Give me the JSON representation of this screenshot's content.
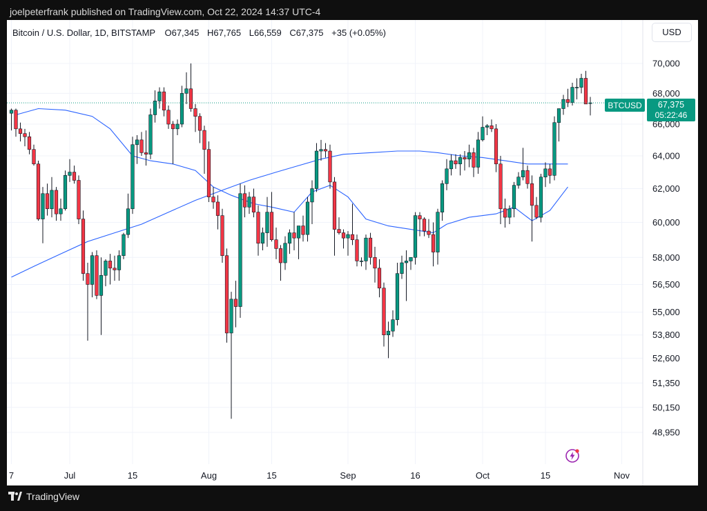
{
  "header": {
    "published": "joelpeterfrank published on TradingView.com, Oct 22, 2024 14:37 UTC-4"
  },
  "legend": {
    "symbol": "Bitcoin / U.S. Dollar, 1D, BITSTAMP",
    "open": "O67,345",
    "high": "H67,765",
    "low": "L66,559",
    "close": "C67,375",
    "change": "+35 (+0.05%)"
  },
  "currency": "USD",
  "price_tag": {
    "symbol": "BTCUSD",
    "price": "67,375",
    "countdown": "05:22:46"
  },
  "footer": {
    "brand": "TradingView"
  },
  "colors": {
    "up": "#089981",
    "down": "#f23645",
    "ma": "#2962ff",
    "tag": "#089981"
  },
  "chart_data": {
    "type": "candlestick",
    "title": "Bitcoin / U.S. Dollar, 1D, BITSTAMP",
    "y_axis": {
      "ticks": [
        {
          "value": 70000,
          "label": "70,000"
        },
        {
          "value": 68000,
          "label": "68,000"
        },
        {
          "value": 66000,
          "label": "66,000"
        },
        {
          "value": 64000,
          "label": "64,000"
        },
        {
          "value": 62000,
          "label": "62,000"
        },
        {
          "value": 60000,
          "label": "60,000"
        },
        {
          "value": 58000,
          "label": "58,000"
        },
        {
          "value": 56500,
          "label": "56,500"
        },
        {
          "value": 55000,
          "label": "55,000"
        },
        {
          "value": 53800,
          "label": "53,800"
        },
        {
          "value": 52600,
          "label": "52,600"
        },
        {
          "value": 51350,
          "label": "51,350"
        },
        {
          "value": 50150,
          "label": "50,150"
        },
        {
          "value": 48950,
          "label": "48,950"
        }
      ],
      "scale": "log"
    },
    "x_axis": {
      "ticks": [
        {
          "index": 0,
          "label": "7"
        },
        {
          "index": 13,
          "label": "Jul"
        },
        {
          "index": 27,
          "label": "15"
        },
        {
          "index": 44,
          "label": "Aug"
        },
        {
          "index": 58,
          "label": "15"
        },
        {
          "index": 75,
          "label": "Sep"
        },
        {
          "index": 90,
          "label": "16"
        },
        {
          "index": 105,
          "label": "Oct"
        },
        {
          "index": 119,
          "label": "15"
        },
        {
          "index": 136,
          "label": "Nov"
        }
      ]
    },
    "last_price": 67375,
    "candles": [
      {
        "o": 66700,
        "h": 67000,
        "l": 65600,
        "c": 66900
      },
      {
        "o": 66900,
        "h": 67000,
        "l": 65200,
        "c": 65700
      },
      {
        "o": 65700,
        "h": 66100,
        "l": 64900,
        "c": 65400
      },
      {
        "o": 65400,
        "h": 65700,
        "l": 64600,
        "c": 65200
      },
      {
        "o": 65200,
        "h": 65500,
        "l": 64100,
        "c": 64400
      },
      {
        "o": 64400,
        "h": 64700,
        "l": 63400,
        "c": 63500
      },
      {
        "o": 63500,
        "h": 63700,
        "l": 60100,
        "c": 60200
      },
      {
        "o": 60200,
        "h": 62100,
        "l": 58800,
        "c": 61700
      },
      {
        "o": 61700,
        "h": 62300,
        "l": 60400,
        "c": 60800
      },
      {
        "o": 60800,
        "h": 62700,
        "l": 60300,
        "c": 61900
      },
      {
        "o": 61900,
        "h": 62100,
        "l": 60100,
        "c": 60500
      },
      {
        "o": 60500,
        "h": 61400,
        "l": 60100,
        "c": 60800
      },
      {
        "o": 60800,
        "h": 63100,
        "l": 60700,
        "c": 62800
      },
      {
        "o": 62800,
        "h": 63800,
        "l": 62400,
        "c": 63000
      },
      {
        "o": 63000,
        "h": 63400,
        "l": 62300,
        "c": 62500
      },
      {
        "o": 62500,
        "h": 62800,
        "l": 59900,
        "c": 60200
      },
      {
        "o": 60200,
        "h": 60700,
        "l": 56700,
        "c": 57100
      },
      {
        "o": 57100,
        "h": 57700,
        "l": 53500,
        "c": 56500
      },
      {
        "o": 56500,
        "h": 58300,
        "l": 55800,
        "c": 58100
      },
      {
        "o": 58100,
        "h": 58400,
        "l": 55700,
        "c": 55900
      },
      {
        "o": 55900,
        "h": 58000,
        "l": 53800,
        "c": 57000
      },
      {
        "o": 57000,
        "h": 57900,
        "l": 56400,
        "c": 57800
      },
      {
        "o": 57800,
        "h": 58200,
        "l": 56500,
        "c": 57400
      },
      {
        "o": 57400,
        "h": 58100,
        "l": 56700,
        "c": 57300
      },
      {
        "o": 57300,
        "h": 58400,
        "l": 56700,
        "c": 58100
      },
      {
        "o": 58100,
        "h": 59400,
        "l": 57900,
        "c": 59300
      },
      {
        "o": 59300,
        "h": 61700,
        "l": 59100,
        "c": 60800
      },
      {
        "o": 60800,
        "h": 65200,
        "l": 60500,
        "c": 64700
      },
      {
        "o": 64700,
        "h": 65300,
        "l": 63500,
        "c": 65000
      },
      {
        "o": 65000,
        "h": 65500,
        "l": 64000,
        "c": 64200
      },
      {
        "o": 64200,
        "h": 65600,
        "l": 63400,
        "c": 64100
      },
      {
        "o": 64100,
        "h": 67000,
        "l": 63800,
        "c": 66600
      },
      {
        "o": 66600,
        "h": 68200,
        "l": 66100,
        "c": 67500
      },
      {
        "o": 67500,
        "h": 68400,
        "l": 67000,
        "c": 68100
      },
      {
        "o": 68100,
        "h": 68400,
        "l": 66500,
        "c": 66900
      },
      {
        "o": 66900,
        "h": 67200,
        "l": 65700,
        "c": 66000
      },
      {
        "o": 66000,
        "h": 66200,
        "l": 63500,
        "c": 65700
      },
      {
        "o": 65700,
        "h": 66300,
        "l": 65300,
        "c": 66000
      },
      {
        "o": 66000,
        "h": 68500,
        "l": 65800,
        "c": 68000
      },
      {
        "o": 68000,
        "h": 69400,
        "l": 67300,
        "c": 68300
      },
      {
        "o": 68300,
        "h": 70000,
        "l": 66800,
        "c": 67000
      },
      {
        "o": 67000,
        "h": 67300,
        "l": 65500,
        "c": 66500
      },
      {
        "o": 66500,
        "h": 66700,
        "l": 64800,
        "c": 65600
      },
      {
        "o": 65600,
        "h": 65900,
        "l": 62900,
        "c": 64400
      },
      {
        "o": 64400,
        "h": 64900,
        "l": 61200,
        "c": 61500
      },
      {
        "o": 61500,
        "h": 62100,
        "l": 60800,
        "c": 61200
      },
      {
        "o": 61200,
        "h": 61600,
        "l": 59600,
        "c": 60400
      },
      {
        "o": 60400,
        "h": 60800,
        "l": 57700,
        "c": 58100
      },
      {
        "o": 58100,
        "h": 58500,
        "l": 53400,
        "c": 53900
      },
      {
        "o": 53900,
        "h": 56100,
        "l": 49600,
        "c": 55700
      },
      {
        "o": 55700,
        "h": 56700,
        "l": 54200,
        "c": 55300
      },
      {
        "o": 55300,
        "h": 62300,
        "l": 54700,
        "c": 61700
      },
      {
        "o": 61700,
        "h": 62200,
        "l": 60300,
        "c": 60900
      },
      {
        "o": 60900,
        "h": 61800,
        "l": 60500,
        "c": 61500
      },
      {
        "o": 61500,
        "h": 62000,
        "l": 60300,
        "c": 60600
      },
      {
        "o": 60600,
        "h": 61000,
        "l": 58100,
        "c": 58800
      },
      {
        "o": 58800,
        "h": 59700,
        "l": 58400,
        "c": 59400
      },
      {
        "o": 59400,
        "h": 61500,
        "l": 58600,
        "c": 60600
      },
      {
        "o": 60600,
        "h": 61800,
        "l": 58900,
        "c": 59000
      },
      {
        "o": 59000,
        "h": 59700,
        "l": 57900,
        "c": 58500
      },
      {
        "o": 58500,
        "h": 58700,
        "l": 56700,
        "c": 57700
      },
      {
        "o": 57700,
        "h": 59200,
        "l": 57300,
        "c": 58800
      },
      {
        "o": 58800,
        "h": 59600,
        "l": 58200,
        "c": 59400
      },
      {
        "o": 59400,
        "h": 60600,
        "l": 58400,
        "c": 59100
      },
      {
        "o": 59100,
        "h": 59800,
        "l": 57900,
        "c": 59800
      },
      {
        "o": 59800,
        "h": 60400,
        "l": 58900,
        "c": 59300
      },
      {
        "o": 59300,
        "h": 61500,
        "l": 58900,
        "c": 61200
      },
      {
        "o": 61200,
        "h": 62500,
        "l": 59900,
        "c": 62000
      },
      {
        "o": 62000,
        "h": 64800,
        "l": 61800,
        "c": 64300
      },
      {
        "o": 64300,
        "h": 65000,
        "l": 63700,
        "c": 64400
      },
      {
        "o": 64400,
        "h": 64800,
        "l": 63900,
        "c": 64300
      },
      {
        "o": 64300,
        "h": 64700,
        "l": 62000,
        "c": 62400
      },
      {
        "o": 62400,
        "h": 62700,
        "l": 58100,
        "c": 59600
      },
      {
        "o": 59600,
        "h": 60300,
        "l": 59300,
        "c": 59400
      },
      {
        "o": 59400,
        "h": 59600,
        "l": 58500,
        "c": 59100
      },
      {
        "o": 59100,
        "h": 59500,
        "l": 58100,
        "c": 59300
      },
      {
        "o": 59300,
        "h": 61100,
        "l": 58700,
        "c": 59000
      },
      {
        "o": 59000,
        "h": 59300,
        "l": 57500,
        "c": 57800
      },
      {
        "o": 57800,
        "h": 58000,
        "l": 57500,
        "c": 57800
      },
      {
        "o": 57800,
        "h": 59300,
        "l": 57300,
        "c": 59100
      },
      {
        "o": 59100,
        "h": 59400,
        "l": 57600,
        "c": 58000
      },
      {
        "o": 58000,
        "h": 58600,
        "l": 56600,
        "c": 57400
      },
      {
        "o": 57400,
        "h": 57900,
        "l": 55800,
        "c": 56300
      },
      {
        "o": 56300,
        "h": 56600,
        "l": 53200,
        "c": 53800
      },
      {
        "o": 53800,
        "h": 54500,
        "l": 52600,
        "c": 54000
      },
      {
        "o": 54000,
        "h": 55100,
        "l": 53700,
        "c": 54600
      },
      {
        "o": 54600,
        "h": 57700,
        "l": 54300,
        "c": 57100
      },
      {
        "o": 57100,
        "h": 58100,
        "l": 56800,
        "c": 57700
      },
      {
        "o": 57700,
        "h": 58400,
        "l": 55600,
        "c": 57800
      },
      {
        "o": 57800,
        "h": 58000,
        "l": 57300,
        "c": 58000
      },
      {
        "o": 58000,
        "h": 60600,
        "l": 57600,
        "c": 60400
      },
      {
        "o": 60400,
        "h": 60600,
        "l": 59200,
        "c": 60200
      },
      {
        "o": 60200,
        "h": 60300,
        "l": 59200,
        "c": 59500
      },
      {
        "o": 59500,
        "h": 60200,
        "l": 59100,
        "c": 59300
      },
      {
        "o": 59300,
        "h": 60000,
        "l": 57500,
        "c": 58300
      },
      {
        "o": 58300,
        "h": 60800,
        "l": 57600,
        "c": 60600
      },
      {
        "o": 60600,
        "h": 62500,
        "l": 60100,
        "c": 62300
      },
      {
        "o": 62300,
        "h": 63800,
        "l": 61900,
        "c": 63200
      },
      {
        "o": 63200,
        "h": 64100,
        "l": 62800,
        "c": 63700
      },
      {
        "o": 63700,
        "h": 64100,
        "l": 63200,
        "c": 63500
      },
      {
        "o": 63500,
        "h": 64100,
        "l": 62800,
        "c": 63900
      },
      {
        "o": 63900,
        "h": 64300,
        "l": 63100,
        "c": 63800
      },
      {
        "o": 63800,
        "h": 64700,
        "l": 63300,
        "c": 64200
      },
      {
        "o": 64200,
        "h": 64500,
        "l": 62700,
        "c": 63300
      },
      {
        "o": 63300,
        "h": 65500,
        "l": 62900,
        "c": 65000
      },
      {
        "o": 65000,
        "h": 66500,
        "l": 64900,
        "c": 65800
      },
      {
        "o": 65800,
        "h": 66000,
        "l": 65300,
        "c": 65900
      },
      {
        "o": 65900,
        "h": 66300,
        "l": 65500,
        "c": 65700
      },
      {
        "o": 65700,
        "h": 66000,
        "l": 63000,
        "c": 63500
      },
      {
        "o": 63500,
        "h": 64000,
        "l": 59900,
        "c": 60800
      },
      {
        "o": 60800,
        "h": 61400,
        "l": 59700,
        "c": 60300
      },
      {
        "o": 60300,
        "h": 61000,
        "l": 59900,
        "c": 60800
      },
      {
        "o": 60800,
        "h": 62400,
        "l": 60300,
        "c": 62200
      },
      {
        "o": 62200,
        "h": 63000,
        "l": 62000,
        "c": 62700
      },
      {
        "o": 62700,
        "h": 64500,
        "l": 62500,
        "c": 63100
      },
      {
        "o": 63100,
        "h": 63400,
        "l": 62000,
        "c": 62300
      },
      {
        "o": 62300,
        "h": 62800,
        "l": 58900,
        "c": 61000
      },
      {
        "o": 61000,
        "h": 61500,
        "l": 60200,
        "c": 60300
      },
      {
        "o": 60300,
        "h": 62900,
        "l": 60000,
        "c": 62700
      },
      {
        "o": 62700,
        "h": 63600,
        "l": 62100,
        "c": 63200
      },
      {
        "o": 63200,
        "h": 63500,
        "l": 62300,
        "c": 62800
      },
      {
        "o": 62800,
        "h": 66500,
        "l": 62500,
        "c": 66100
      },
      {
        "o": 66100,
        "h": 67000,
        "l": 64900,
        "c": 67000
      },
      {
        "o": 67000,
        "h": 67900,
        "l": 66600,
        "c": 67600
      },
      {
        "o": 67600,
        "h": 68300,
        "l": 67100,
        "c": 67400
      },
      {
        "o": 67400,
        "h": 68700,
        "l": 67200,
        "c": 68400
      },
      {
        "o": 68400,
        "h": 69000,
        "l": 67600,
        "c": 68400
      },
      {
        "o": 68400,
        "h": 69300,
        "l": 68000,
        "c": 69000
      },
      {
        "o": 69000,
        "h": 69500,
        "l": 67500,
        "c": 67300
      },
      {
        "o": 67345,
        "h": 67765,
        "l": 66559,
        "c": 67375
      }
    ],
    "ma_short": {
      "name": "Short moving average",
      "points": [
        [
          1,
          66600
        ],
        [
          6,
          67000
        ],
        [
          12,
          66900
        ],
        [
          18,
          66500
        ],
        [
          22,
          65700
        ],
        [
          27,
          64000
        ],
        [
          31,
          63700
        ],
        [
          36,
          63500
        ],
        [
          41,
          63100
        ],
        [
          45,
          62100
        ],
        [
          49,
          61600
        ],
        [
          54,
          61100
        ],
        [
          58,
          60900
        ],
        [
          63,
          60600
        ],
        [
          67,
          61800
        ],
        [
          71,
          62200
        ],
        [
          75,
          61500
        ],
        [
          79,
          60200
        ],
        [
          84,
          59800
        ],
        [
          89,
          59600
        ],
        [
          94,
          59400
        ],
        [
          97,
          59900
        ],
        [
          102,
          60300
        ],
        [
          108,
          60500
        ],
        [
          112,
          60900
        ],
        [
          116,
          60100
        ],
        [
          120,
          60700
        ],
        [
          124,
          62100
        ]
      ]
    },
    "ma_long": {
      "name": "Long moving average",
      "points": [
        [
          0,
          56900
        ],
        [
          5,
          57500
        ],
        [
          11,
          58200
        ],
        [
          17,
          58900
        ],
        [
          23,
          59400
        ],
        [
          29,
          59900
        ],
        [
          35,
          60600
        ],
        [
          41,
          61300
        ],
        [
          47,
          61900
        ],
        [
          53,
          62500
        ],
        [
          59,
          63000
        ],
        [
          64,
          63400
        ],
        [
          69,
          63800
        ],
        [
          74,
          64100
        ],
        [
          80,
          64200
        ],
        [
          86,
          64300
        ],
        [
          91,
          64300
        ],
        [
          95,
          64200
        ],
        [
          100,
          64000
        ],
        [
          105,
          63900
        ],
        [
          110,
          63700
        ],
        [
          115,
          63500
        ],
        [
          120,
          63500
        ],
        [
          124,
          63500
        ]
      ]
    }
  }
}
